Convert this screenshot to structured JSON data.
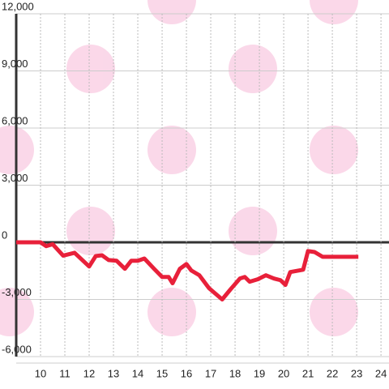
{
  "chart_data": {
    "type": "line",
    "x": [
      9,
      10,
      10.23,
      10.5,
      10.93,
      11.4,
      12,
      12.27,
      12.53,
      12.8,
      13.13,
      13.47,
      13.73,
      14,
      14.27,
      14.67,
      15,
      15.27,
      15.43,
      15.73,
      16,
      16.2,
      16.53,
      16.93,
      17.47,
      17.8,
      18.2,
      18.4,
      18.6,
      18.93,
      19.27,
      19.6,
      19.87,
      20.07,
      20.27,
      20.8,
      21,
      21.27,
      21.6,
      22.07,
      23.07
    ],
    "series": [
      {
        "color": "#e8203a",
        "values": [
          0,
          0,
          -200,
          -100,
          -700,
          -550,
          -1270,
          -720,
          -680,
          -930,
          -970,
          -1390,
          -970,
          -970,
          -850,
          -1390,
          -1820,
          -1820,
          -2150,
          -1390,
          -1140,
          -1480,
          -1730,
          -2410,
          -3000,
          -2490,
          -1900,
          -1820,
          -2070,
          -1940,
          -1730,
          -1900,
          -1990,
          -2240,
          -1560,
          -1440,
          -460,
          -510,
          -760,
          -760,
          -760
        ]
      }
    ],
    "xlim": [
      9,
      24.33
    ],
    "xticks": [
      10,
      11,
      12,
      13,
      14,
      15,
      16,
      17,
      18,
      19,
      20,
      21,
      22,
      23,
      24
    ],
    "ylim": [
      -6000,
      12000
    ],
    "yticks": [
      {
        "value": -6000,
        "label": "-6,000"
      },
      {
        "value": -3000,
        "label": "-3,000"
      },
      0,
      {
        "value": 3000,
        "label": "3,000"
      },
      {
        "value": 6000,
        "label": "6,000"
      },
      {
        "value": 9000,
        "label": "9,000"
      },
      {
        "value": 12000,
        "label": "12,000"
      }
    ],
    "grid": true
  }
}
